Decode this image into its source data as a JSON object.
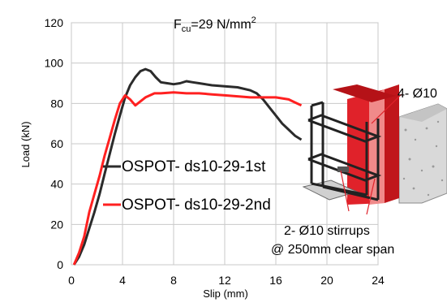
{
  "chart_data": {
    "type": "line",
    "title": "F",
    "title_sub": "cu",
    "title_rest": "=29 N/mm",
    "title_sup": "2",
    "xlabel": "Slip (mm)",
    "ylabel": "Load (kN)",
    "xlim": [
      0,
      24
    ],
    "ylim": [
      0,
      120
    ],
    "xticks": [
      "0",
      "4",
      "8",
      "12",
      "16",
      "20",
      "24"
    ],
    "yticks": [
      "0",
      "20",
      "40",
      "60",
      "80",
      "100",
      "120"
    ],
    "grid": true,
    "series": [
      {
        "name": "OSPOT- ds10-29-1st",
        "color": "#2b2b2b",
        "points": [
          [
            0.2,
            0
          ],
          [
            0.6,
            4
          ],
          [
            1.0,
            10
          ],
          [
            1.4,
            18
          ],
          [
            1.8,
            26
          ],
          [
            2.2,
            35
          ],
          [
            2.6,
            45
          ],
          [
            3.0,
            55
          ],
          [
            3.4,
            65
          ],
          [
            3.8,
            74
          ],
          [
            4.2,
            83
          ],
          [
            4.6,
            89
          ],
          [
            5.0,
            93
          ],
          [
            5.4,
            96
          ],
          [
            5.8,
            97
          ],
          [
            6.2,
            96
          ],
          [
            6.6,
            93
          ],
          [
            7.0,
            90.5
          ],
          [
            7.5,
            90
          ],
          [
            8.0,
            89.5
          ],
          [
            8.5,
            90
          ],
          [
            9.0,
            91
          ],
          [
            9.5,
            90.5
          ],
          [
            10.0,
            90
          ],
          [
            11.0,
            89
          ],
          [
            12.0,
            88.5
          ],
          [
            13.0,
            88
          ],
          [
            14.0,
            86.5
          ],
          [
            14.5,
            85
          ],
          [
            15.0,
            82
          ],
          [
            15.5,
            78
          ],
          [
            16.0,
            74
          ],
          [
            16.5,
            70
          ],
          [
            17.0,
            67
          ],
          [
            17.5,
            64
          ],
          [
            18.0,
            62
          ]
        ]
      },
      {
        "name": "OSPOT- ds10-29-2nd",
        "color": "#ff2020",
        "points": [
          [
            0.2,
            0
          ],
          [
            0.6,
            6
          ],
          [
            1.0,
            14
          ],
          [
            1.4,
            26
          ],
          [
            1.8,
            35
          ],
          [
            2.2,
            44
          ],
          [
            2.6,
            54
          ],
          [
            3.0,
            63
          ],
          [
            3.4,
            72
          ],
          [
            3.8,
            80
          ],
          [
            4.2,
            84
          ],
          [
            4.6,
            82
          ],
          [
            5.0,
            79
          ],
          [
            5.4,
            81
          ],
          [
            5.8,
            83
          ],
          [
            6.5,
            85
          ],
          [
            7.0,
            85
          ],
          [
            8.0,
            85.5
          ],
          [
            9.0,
            85
          ],
          [
            10.0,
            85
          ],
          [
            11.0,
            84.5
          ],
          [
            12.0,
            84
          ],
          [
            13.0,
            83.5
          ],
          [
            14.0,
            83
          ],
          [
            15.0,
            83
          ],
          [
            16.0,
            83
          ],
          [
            16.5,
            82.5
          ],
          [
            17.0,
            82
          ],
          [
            17.5,
            80.5
          ],
          [
            18.0,
            79
          ]
        ]
      }
    ],
    "annotations": {
      "top_right": "4- Ø10",
      "stirrups": "2- Ø10 stirrups",
      "spacing": "@ 250mm clear span"
    }
  }
}
